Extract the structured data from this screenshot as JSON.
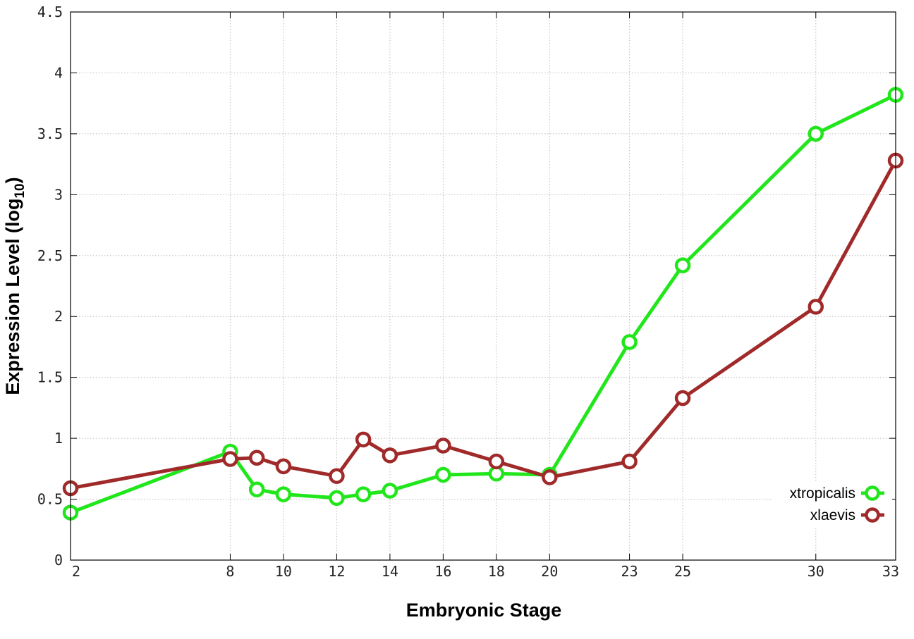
{
  "chart_data": {
    "type": "line",
    "title": "",
    "xlabel": "Embryonic Stage",
    "ylabel_main": "Expression Level (log",
    "ylabel_sub": "10",
    "ylabel_close": ")",
    "xlim": [
      2,
      33
    ],
    "ylim": [
      0,
      4.5
    ],
    "xticks": [
      2,
      8,
      10,
      12,
      14,
      16,
      18,
      20,
      23,
      25,
      30,
      33
    ],
    "yticks": [
      0,
      0.5,
      1,
      1.5,
      2,
      2.5,
      3,
      3.5,
      4,
      4.5
    ],
    "ytick_labels": [
      "0",
      "0.5",
      "1",
      "1.5",
      "2",
      "2.5",
      "3",
      "3.5",
      "4",
      "4.5"
    ],
    "grid": true,
    "legend_position": "bottom-right",
    "series": [
      {
        "name": "xtropicalis",
        "color": "#22e61c",
        "x": [
          2,
          8,
          9,
          10,
          12,
          13,
          14,
          16,
          18,
          20,
          23,
          25,
          30,
          33
        ],
        "y": [
          0.39,
          0.89,
          0.58,
          0.54,
          0.51,
          0.54,
          0.57,
          0.7,
          0.71,
          0.7,
          1.79,
          2.42,
          3.5,
          3.82
        ]
      },
      {
        "name": "xlaevis",
        "color": "#a02a2a",
        "x": [
          2,
          8,
          9,
          10,
          12,
          13,
          14,
          16,
          18,
          20,
          23,
          25,
          30,
          33
        ],
        "y": [
          0.59,
          0.83,
          0.84,
          0.77,
          0.69,
          0.99,
          0.86,
          0.94,
          0.81,
          0.68,
          0.81,
          1.33,
          2.08,
          3.28
        ]
      }
    ]
  }
}
